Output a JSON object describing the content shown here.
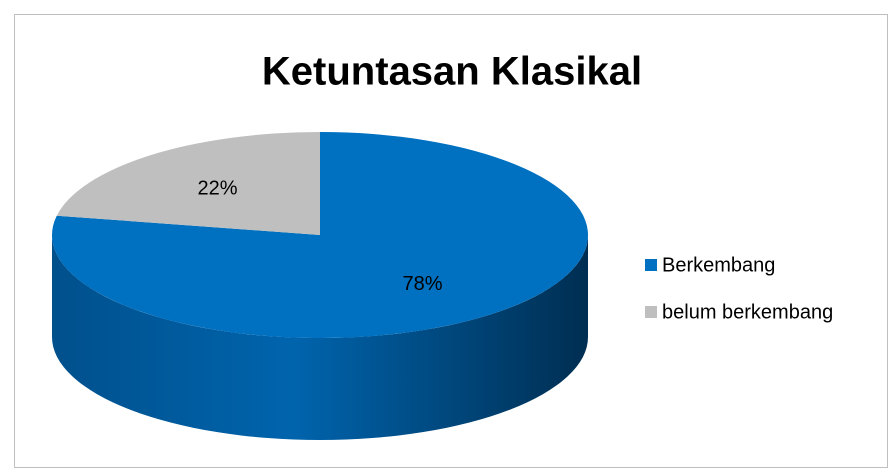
{
  "chart_data": {
    "type": "pie",
    "title": "Ketuntasan Klasikal",
    "categories": [
      "Berkembang",
      "belum berkembang"
    ],
    "values": [
      78,
      22
    ],
    "value_labels": [
      "78%",
      "22%"
    ],
    "colors": [
      "#0070c0",
      "#bfbfbf"
    ],
    "legend": "right"
  }
}
